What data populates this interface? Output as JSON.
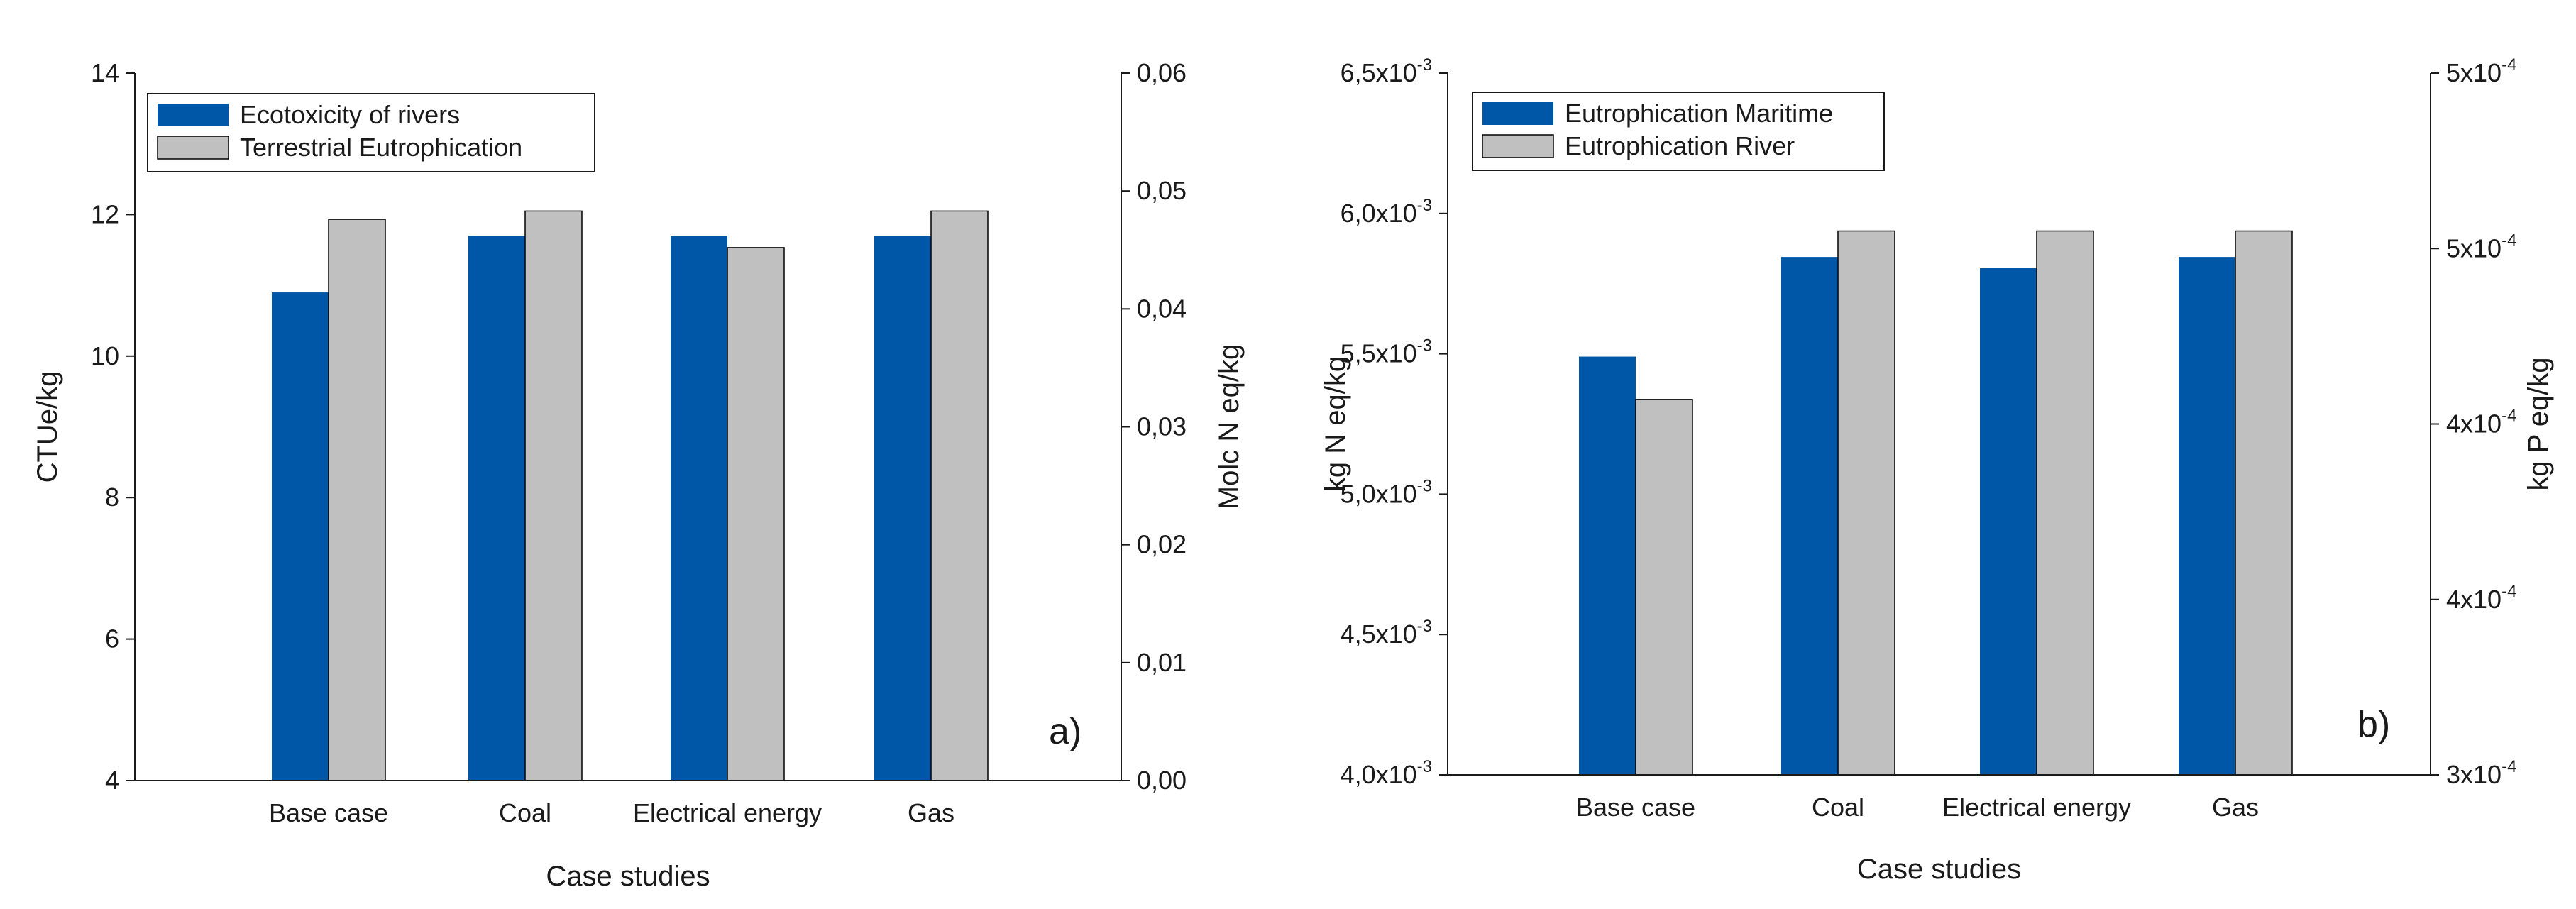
{
  "colors": {
    "series1": "#0057A8",
    "series2": "#C0C0C0",
    "axis": "#1a1a1a"
  },
  "chart_data": [
    {
      "type": "bar",
      "panel_label": "a)",
      "categories": [
        "Base case",
        "Coal",
        "Electrical energy",
        "Gas"
      ],
      "xlabel": "Case studies",
      "ylabel": "CTUe/kg",
      "ylabel_right": "Molc N eq/kg",
      "ylim": [
        4,
        14
      ],
      "yticks": [
        4,
        6,
        8,
        10,
        12,
        14
      ],
      "ytick_labels": [
        "4",
        "6",
        "8",
        "10",
        "12",
        "14"
      ],
      "ylim_right": [
        0,
        0.06
      ],
      "yticks_right": [
        0,
        0.01,
        0.02,
        0.03,
        0.04,
        0.05,
        0.06
      ],
      "ytick_labels_right": [
        "0,00",
        "0,01",
        "0,02",
        "0,03",
        "0,04",
        "0,05",
        "0,06"
      ],
      "series": [
        {
          "name": "Ecotoxicity of rivers",
          "axis": "left",
          "values": [
            10.9,
            11.7,
            11.7,
            11.7
          ]
        },
        {
          "name": "Terrestrial Eutrophication",
          "axis": "right",
          "values": [
            0.0476,
            0.0483,
            0.0452,
            0.0483
          ]
        }
      ],
      "legend": "top-left"
    },
    {
      "type": "bar",
      "panel_label": "b)",
      "categories": [
        "Base case",
        "Coal",
        "Electrical energy",
        "Gas"
      ],
      "xlabel": "Case studies",
      "ylabel": "kg N eq/kg",
      "ylabel_right": "kg P eq/kg",
      "ylim": [
        0.004,
        0.0065
      ],
      "yticks": [
        0.004,
        0.0045,
        0.005,
        0.0055,
        0.006,
        0.0065
      ],
      "ytick_labels": [
        {
          "m": "4,0x10",
          "e": "-3"
        },
        {
          "m": "4,5x10",
          "e": "-3"
        },
        {
          "m": "5,0x10",
          "e": "-3"
        },
        {
          "m": "5,5x10",
          "e": "-3"
        },
        {
          "m": "6,0x10",
          "e": "-3"
        },
        {
          "m": "6,5x10",
          "e": "-3"
        }
      ],
      "ylim_right": [
        0.0003,
        0.0005
      ],
      "yticks_right": [
        0.0003,
        0.00035,
        0.0004,
        0.00045,
        0.0005
      ],
      "ytick_labels_right": [
        {
          "m": "3x10",
          "e": "-4"
        },
        {
          "m": "4x10",
          "e": "-4"
        },
        {
          "m": "4x10",
          "e": "-4"
        },
        {
          "m": "5x10",
          "e": "-4"
        },
        {
          "m": "5x10",
          "e": "-4"
        }
      ],
      "series": [
        {
          "name": "Eutrophication Maritime",
          "axis": "left",
          "values": [
            0.00549,
            0.005845,
            0.005805,
            0.005845
          ]
        },
        {
          "name": "Eutrophication River",
          "axis": "right",
          "values": [
            0.000407,
            0.000455,
            0.000455,
            0.000455
          ]
        }
      ],
      "legend": "top-left"
    }
  ]
}
